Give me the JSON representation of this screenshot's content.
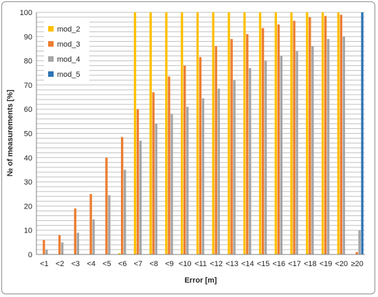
{
  "chart_data": {
    "type": "bar",
    "xlabel": "Error [m]",
    "ylabel": "№ of measurements [%]",
    "ylim": [
      0,
      100
    ],
    "yticks": [
      0,
      10,
      20,
      30,
      40,
      50,
      60,
      70,
      80,
      90,
      100
    ],
    "grid": "horizontal gridlines, every 2",
    "legend_position": "top-left",
    "categories": [
      "<1",
      "<2",
      "<3",
      "<4",
      "<5",
      "<6",
      "<7",
      "<8",
      "<9",
      "<10",
      "<11",
      "<12",
      "<13",
      "<14",
      "<15",
      "<16",
      "<17",
      "<18",
      "<19",
      "<20",
      "≥20"
    ],
    "series": [
      {
        "name": "mod_2",
        "color": "#FFC000",
        "values": [
          0,
          0,
          0,
          0,
          0,
          0.5,
          100,
          100,
          100,
          100,
          100,
          100,
          100,
          100,
          100,
          100,
          100,
          100,
          100,
          100,
          0
        ]
      },
      {
        "name": "mod_3",
        "color": "#ED7D31",
        "values": [
          6,
          8,
          19,
          25,
          40,
          48.5,
          60,
          67,
          73.5,
          78,
          81.5,
          86,
          89,
          91,
          93.5,
          95,
          96.5,
          98,
          98.5,
          99,
          1
        ]
      },
      {
        "name": "mod_4",
        "color": "#A5A5A5",
        "values": [
          2,
          5,
          9,
          14.5,
          24.5,
          35,
          47,
          54,
          58,
          61,
          64.5,
          68.5,
          72,
          77,
          80,
          82,
          84,
          86,
          89,
          90,
          10
        ]
      },
      {
        "name": "mod_5",
        "color": "#2E75B6",
        "values": [
          0,
          0,
          0,
          0,
          0,
          0,
          0,
          0,
          0,
          0,
          0,
          0,
          0,
          0,
          0,
          0,
          0,
          0,
          0,
          0,
          100
        ]
      }
    ]
  }
}
